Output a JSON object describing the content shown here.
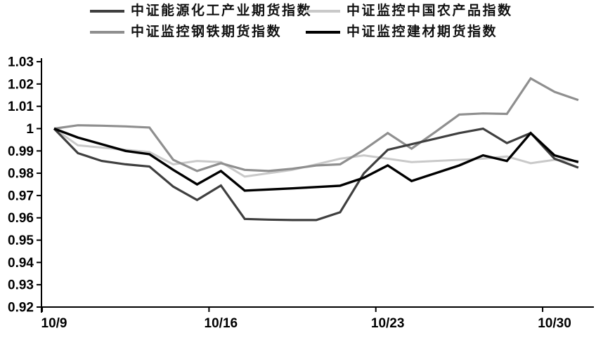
{
  "chart_data": {
    "type": "line",
    "title": "",
    "x": [
      "10/9",
      "10/10",
      "10/11",
      "10/12",
      "10/13",
      "10/14",
      "10/15",
      "10/16",
      "10/17",
      "10/18",
      "10/19",
      "10/20",
      "10/21",
      "10/22",
      "10/23",
      "10/24",
      "10/25",
      "10/26",
      "10/27",
      "10/28",
      "10/29",
      "10/30",
      "10/31"
    ],
    "series": [
      {
        "id": "energy-chem-futures-index",
        "name": "中证能源化工产业期货指数",
        "color": "#3f3f3f",
        "stroke_width": 3.2,
        "values": [
          1.0,
          0.989,
          0.9855,
          0.984,
          0.983,
          0.974,
          0.968,
          0.9745,
          0.9595,
          0.9592,
          0.959,
          0.959,
          0.9625,
          0.98,
          0.9905,
          0.993,
          0.9955,
          0.998,
          1.0,
          0.9935,
          0.998,
          0.9865,
          0.9825
        ]
      },
      {
        "id": "china-agri-products-index",
        "name": "中证监控中国农产品指数",
        "color": "#c9c9c9",
        "stroke_width": 3.0,
        "values": [
          1.0,
          0.9925,
          0.9915,
          0.9905,
          0.9895,
          0.984,
          0.9855,
          0.985,
          0.9785,
          0.98,
          0.9815,
          0.984,
          0.9865,
          0.988,
          0.9865,
          0.985,
          0.9855,
          0.986,
          0.9865,
          0.9875,
          0.9845,
          0.986,
          0.9855
        ]
      },
      {
        "id": "steel-futures-index",
        "name": "中证监控钢铁期货指数",
        "color": "#8f8f8f",
        "stroke_width": 3.2,
        "values": [
          1.0,
          1.0015,
          1.0013,
          1.001,
          1.0005,
          0.986,
          0.981,
          0.9845,
          0.9815,
          0.981,
          0.982,
          0.9835,
          0.984,
          0.9905,
          0.998,
          0.991,
          0.9985,
          1.0063,
          1.0068,
          1.0066,
          1.0225,
          1.0165,
          1.0128
        ]
      },
      {
        "id": "building-materials-futures-index",
        "name": "中证监控建材期货指数",
        "color": "#000000",
        "stroke_width": 3.4,
        "values": [
          1.0,
          0.996,
          0.993,
          0.99,
          0.9885,
          0.9815,
          0.975,
          0.981,
          0.9722,
          0.9727,
          0.9732,
          0.9738,
          0.9744,
          0.978,
          0.9835,
          0.9765,
          0.98,
          0.9835,
          0.988,
          0.9855,
          0.998,
          0.988,
          0.985
        ]
      }
    ],
    "ylim": [
      0.92,
      1.03
    ],
    "y_ticks": [
      {
        "v": 0.92,
        "label": "0.92"
      },
      {
        "v": 0.93,
        "label": "0.93"
      },
      {
        "v": 0.94,
        "label": "0.94"
      },
      {
        "v": 0.95,
        "label": "0.95"
      },
      {
        "v": 0.96,
        "label": "0.96"
      },
      {
        "v": 0.97,
        "label": "0.97"
      },
      {
        "v": 0.98,
        "label": "0.98"
      },
      {
        "v": 0.99,
        "label": "0.99"
      },
      {
        "v": 1.0,
        "label": "1"
      },
      {
        "v": 1.01,
        "label": "1.01"
      },
      {
        "v": 1.02,
        "label": "1.02"
      },
      {
        "v": 1.03,
        "label": "1.03"
      }
    ],
    "x_ticks": [
      {
        "index": 0,
        "label": "10/9"
      },
      {
        "index": 7,
        "label": "10/16"
      },
      {
        "index": 14,
        "label": "10/23"
      },
      {
        "index": 21,
        "label": "10/30"
      }
    ],
    "legend_position": "top",
    "grid": false,
    "xlabel": "",
    "ylabel": ""
  }
}
